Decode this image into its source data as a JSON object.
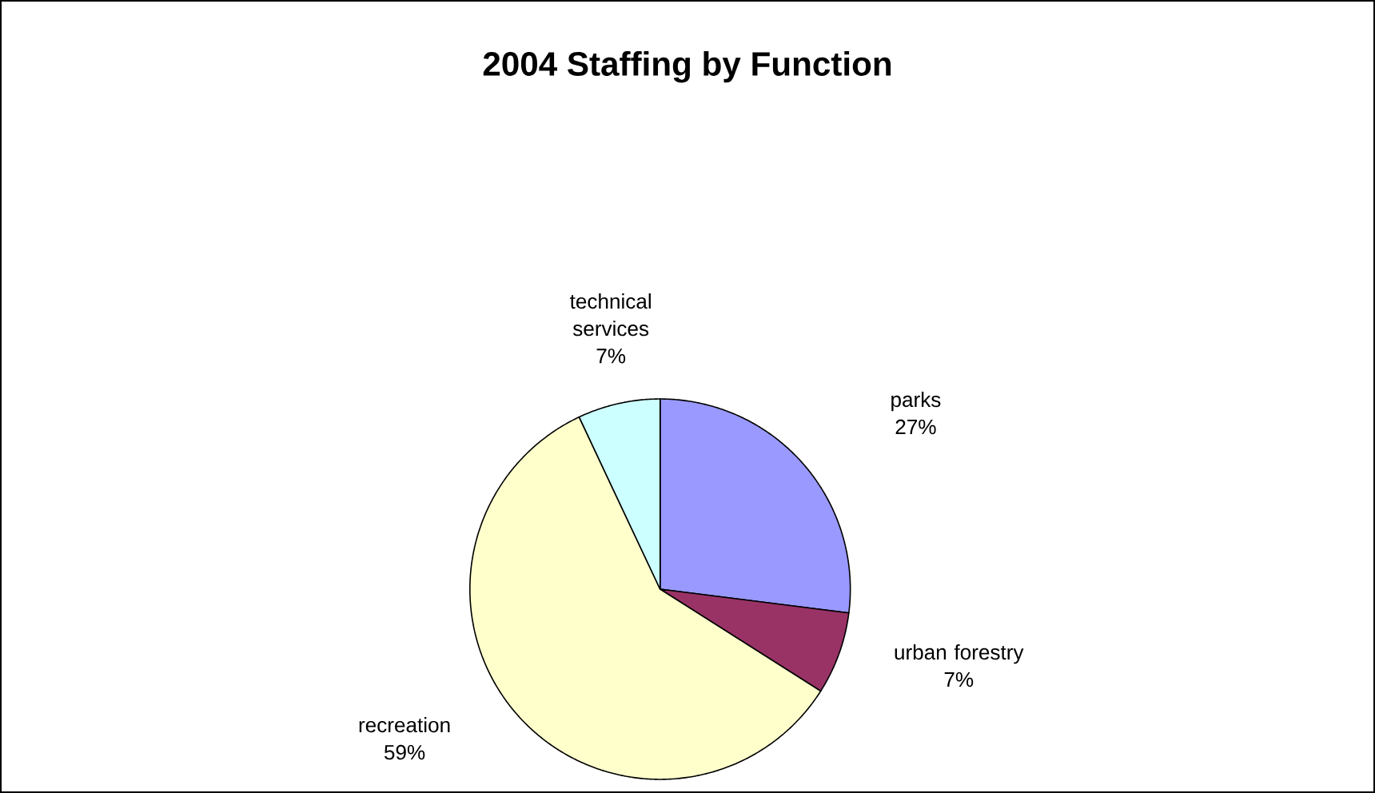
{
  "chart_data": {
    "type": "pie",
    "title": "2004 Staffing by Function",
    "categories": [
      "parks",
      "urban forestry",
      "recreation",
      "technical services"
    ],
    "values": [
      27,
      7,
      59,
      7
    ],
    "value_labels": [
      "27%",
      "7%",
      "59%",
      "7%"
    ],
    "colors": [
      "#9999ff",
      "#993366",
      "#ffffcc",
      "#ccffff"
    ]
  }
}
